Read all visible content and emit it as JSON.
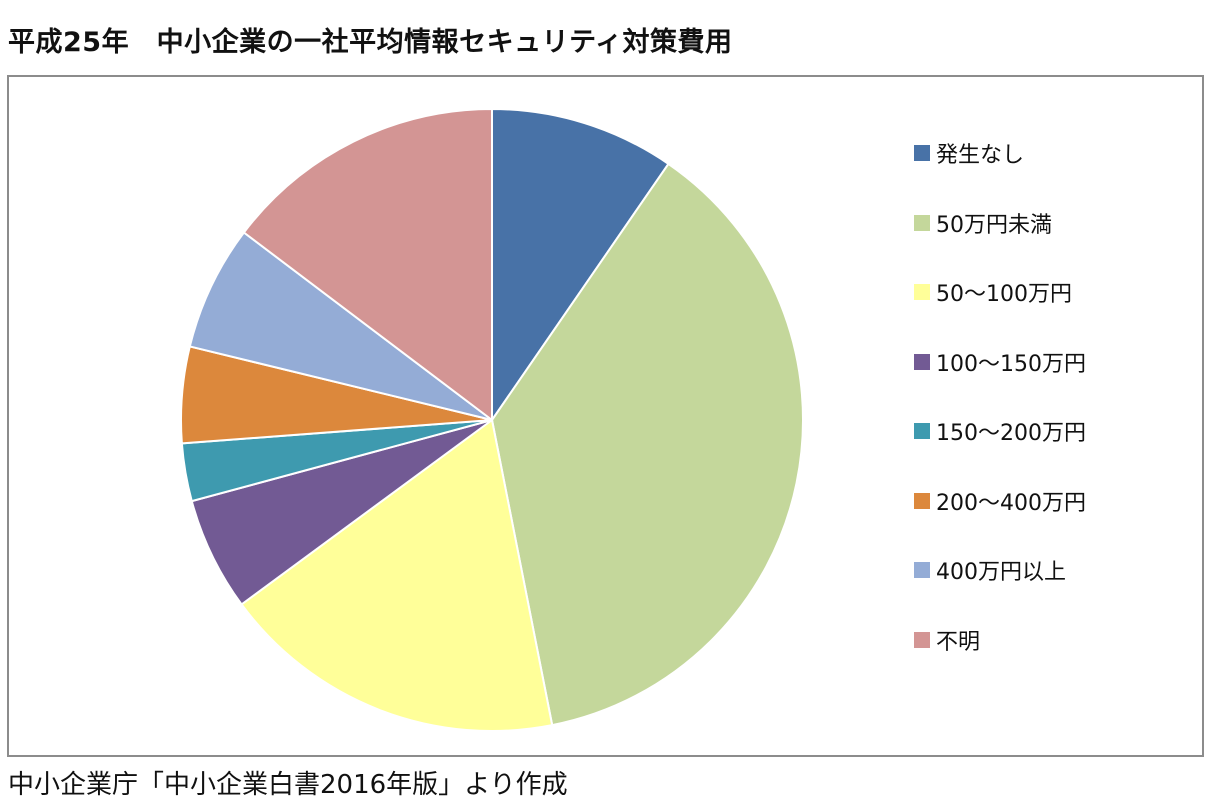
{
  "title": "平成25年　中小企業の一社平均情報セキュリティ対策費用",
  "source": "中小企業庁「中小企業白書2016年版」より作成",
  "chart_data": {
    "type": "pie",
    "title": "平成25年　中小企業の一社平均情報セキュリティ対策費用",
    "legend_position": "right",
    "start_angle": "12 o'clock",
    "direction": "clockwise",
    "unit": "percent",
    "slices": [
      {
        "label": "発生なし",
        "value": 9.6,
        "color": "#4872A7"
      },
      {
        "label": "50万円未満",
        "value": 37.3,
        "color": "#C4D79B"
      },
      {
        "label": "50～100万円",
        "value": 18.0,
        "color": "#FFFF99"
      },
      {
        "label": "100～150万円",
        "value": 5.9,
        "color": "#725A94"
      },
      {
        "label": "150～200万円",
        "value": 3.0,
        "color": "#3E9AAF"
      },
      {
        "label": "200～400万円",
        "value": 5.0,
        "color": "#DC883C"
      },
      {
        "label": "400万円以上",
        "value": 6.5,
        "color": "#94ACD6"
      },
      {
        "label": "不明",
        "value": 14.7,
        "color": "#D39594"
      }
    ]
  }
}
